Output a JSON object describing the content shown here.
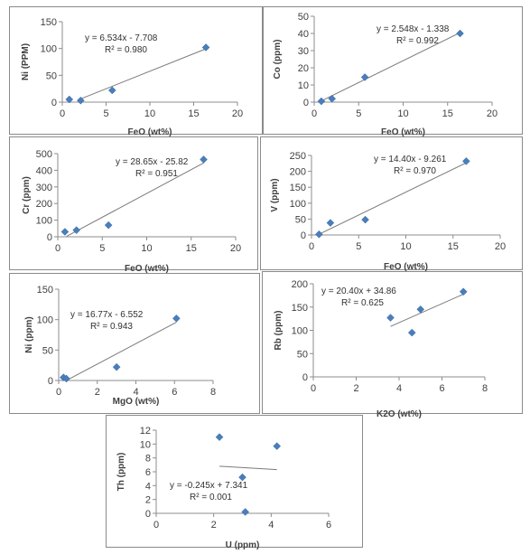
{
  "chart_data": [
    {
      "type": "scatter",
      "xlabel": "FeO (wt%)",
      "ylabel": "Ni (PPM)",
      "xlim": [
        0,
        20
      ],
      "ylim": [
        0,
        150
      ],
      "xticks": [
        0,
        5,
        10,
        15,
        20
      ],
      "yticks": [
        0,
        50,
        100,
        150
      ],
      "xtick_labels": [
        "0",
        "5",
        "10",
        "15",
        "20"
      ],
      "ytick_labels": [
        "0",
        "50",
        "100",
        "150"
      ],
      "points": [
        [
          0.8,
          5
        ],
        [
          2.1,
          3
        ],
        [
          5.7,
          22
        ],
        [
          16.4,
          102
        ]
      ],
      "trendline": {
        "slope": 6.534,
        "intercept": -7.708,
        "x": [
          2.0,
          16.4
        ]
      },
      "equation": "y = 6.534x - 7.708",
      "r2": "R² = 0.980"
    },
    {
      "type": "scatter",
      "xlabel": "FeO (wt%)",
      "ylabel": "Co (ppm)",
      "xlim": [
        0,
        20
      ],
      "ylim": [
        0,
        50
      ],
      "xticks": [
        0,
        5,
        10,
        15,
        20
      ],
      "yticks": [
        0,
        10,
        20,
        30,
        40,
        50
      ],
      "xtick_labels": [
        "0",
        "5",
        "10",
        "15",
        "20"
      ],
      "ytick_labels": [
        "0",
        "10",
        "20",
        "30",
        "40",
        "50"
      ],
      "points": [
        [
          0.8,
          0.5
        ],
        [
          2.0,
          2.0
        ],
        [
          5.7,
          14.5
        ],
        [
          16.4,
          40
        ]
      ],
      "trendline": {
        "slope": 2.548,
        "intercept": -1.338,
        "x": [
          0.6,
          16.4
        ]
      },
      "equation": "y = 2.548x - 1.338",
      "r2": "R² = 0.992"
    },
    {
      "type": "scatter",
      "xlabel": "FeO (wt%)",
      "ylabel": "Cr (ppm)",
      "xlim": [
        0,
        20
      ],
      "ylim": [
        0,
        500
      ],
      "xticks": [
        0,
        5,
        10,
        15,
        20
      ],
      "yticks": [
        0,
        100,
        200,
        300,
        400,
        500
      ],
      "xtick_labels": [
        "0",
        "5",
        "10",
        "15",
        "20"
      ],
      "ytick_labels": [
        "0",
        "100",
        "200",
        "300",
        "400",
        "500"
      ],
      "points": [
        [
          0.8,
          30
        ],
        [
          2.1,
          40
        ],
        [
          5.7,
          70
        ],
        [
          16.4,
          465
        ]
      ],
      "trendline": {
        "slope": 28.65,
        "intercept": -25.82,
        "x": [
          1.0,
          16.4
        ]
      },
      "equation": "y = 28.65x - 25.82",
      "r2": "R² = 0.951"
    },
    {
      "type": "scatter",
      "xlabel": "FeO (wt%)",
      "ylabel": "V (ppm)",
      "xlim": [
        0,
        20
      ],
      "ylim": [
        0,
        250
      ],
      "xticks": [
        0,
        5,
        10,
        15,
        20
      ],
      "yticks": [
        0,
        50,
        100,
        150,
        200,
        250
      ],
      "xtick_labels": [
        "0",
        "5",
        "10",
        "15",
        "20"
      ],
      "ytick_labels": [
        "0",
        "50",
        "100",
        "150",
        "200",
        "250"
      ],
      "points": [
        [
          0.8,
          2
        ],
        [
          2.0,
          38
        ],
        [
          5.7,
          48
        ],
        [
          16.4,
          232
        ]
      ],
      "trendline": {
        "slope": 14.4,
        "intercept": -9.261,
        "x": [
          0.7,
          16.4
        ]
      },
      "equation": "y = 14.40x - 9.261",
      "r2": "R² = 0.970"
    },
    {
      "type": "scatter",
      "xlabel": "MgO (wt%)",
      "ylabel": "Ni (ppm)",
      "xlim": [
        0,
        8
      ],
      "ylim": [
        0,
        150
      ],
      "xticks": [
        0,
        2,
        4,
        6,
        8
      ],
      "yticks": [
        0,
        50,
        100,
        150
      ],
      "xtick_labels": [
        "0",
        "2",
        "4",
        "6",
        "8"
      ],
      "ytick_labels": [
        "0",
        "50",
        "100",
        "150"
      ],
      "points": [
        [
          0.25,
          5
        ],
        [
          0.4,
          3
        ],
        [
          3.0,
          22
        ],
        [
          6.1,
          102
        ]
      ],
      "trendline": {
        "slope": 16.77,
        "intercept": -6.552,
        "x": [
          0.4,
          6.1
        ]
      },
      "equation": "y = 16.77x - 6.552",
      "r2": "R² = 0.943"
    },
    {
      "type": "scatter",
      "xlabel": "K2O  (wt%)",
      "ylabel": "Rb (ppm)",
      "xlim": [
        0,
        8
      ],
      "ylim": [
        0,
        200
      ],
      "xticks": [
        0,
        2,
        4,
        6,
        8
      ],
      "yticks": [
        0,
        50,
        100,
        150,
        200
      ],
      "xtick_labels": [
        "0",
        "2",
        "4",
        "6",
        "8"
      ],
      "ytick_labels": [
        "0",
        "50",
        "100",
        "150",
        "200"
      ],
      "points": [
        [
          3.6,
          127
        ],
        [
          4.6,
          95
        ],
        [
          5.0,
          145
        ],
        [
          7.0,
          183
        ]
      ],
      "trendline": {
        "slope": 20.4,
        "intercept": 34.86,
        "x": [
          3.6,
          7.0
        ]
      },
      "equation": "y = 20.40x + 34.86",
      "r2": "R² = 0.625"
    },
    {
      "type": "scatter",
      "xlabel": "U (ppm)",
      "ylabel": "Th (ppm)",
      "xlim": [
        0,
        6
      ],
      "ylim": [
        0,
        12
      ],
      "xticks": [
        0,
        2,
        4,
        6
      ],
      "yticks": [
        0,
        2,
        4,
        6,
        8,
        10,
        12
      ],
      "xtick_labels": [
        "0",
        "2",
        "4",
        "6"
      ],
      "ytick_labels": [
        "0",
        "2",
        "4",
        "6",
        "8",
        "10",
        "12"
      ],
      "points": [
        [
          2.2,
          11.0
        ],
        [
          3.0,
          5.2
        ],
        [
          3.1,
          0.2
        ],
        [
          4.2,
          9.7
        ]
      ],
      "trendline": {
        "slope": -0.245,
        "intercept": 7.341,
        "x": [
          2.2,
          4.2
        ]
      },
      "equation": "y = -0.245x + 7.341",
      "r2": "R² = 0.001"
    }
  ]
}
